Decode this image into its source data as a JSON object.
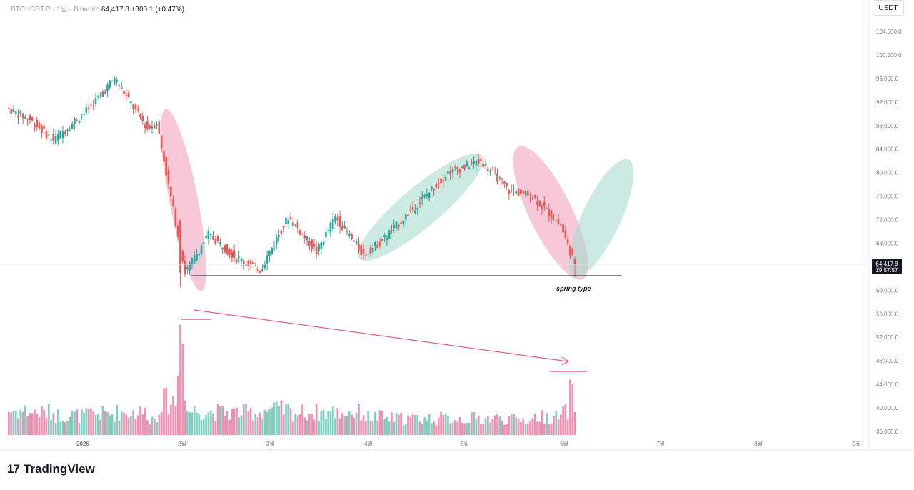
{
  "header": {
    "symbol": "BTCUSDT.P",
    "timeframe": "1일",
    "exchange": "Binance",
    "last_price": "64,417.8",
    "change": "+300.1 (+0.47%)"
  },
  "currency": "USDT",
  "brand": "TradingView",
  "price_label": {
    "price": "64,417.8",
    "countdown": "19:57:57"
  },
  "annotation": "spring type",
  "colors": {
    "up": "#26a69a",
    "down": "#ef5350",
    "up_volume": "#7fcfc0",
    "down_volume": "#f08fb0",
    "ellipse_red": "#f2a5be",
    "ellipse_green": "#a9dccf",
    "arrow": "#e0608c"
  },
  "chart_data": {
    "type": "candlestick",
    "y_axis": {
      "ticks": [
        "104,000.0",
        "100,000.0",
        "96,000.0",
        "92,000.0",
        "88,000.0",
        "84,000.0",
        "80,000.0",
        "76,000.0",
        "72,000.0",
        "68,000.0",
        "64,000.0",
        "60,000.0",
        "56,000.0",
        "52,000.0",
        "48,000.0",
        "44,000.0",
        "40,000.0",
        "36,000.0"
      ],
      "range": [
        36000,
        104000
      ]
    },
    "x_axis": {
      "labels": [
        "2026",
        "2월",
        "3월",
        "4월",
        "5월",
        "6월",
        "7월",
        "8월",
        "9월"
      ]
    },
    "support_level": 62500,
    "last_price": 64417.8,
    "segments": [
      {
        "bars": 10,
        "start": 91000,
        "end": 89000,
        "vol": 3.2
      },
      {
        "bars": 10,
        "start": 89000,
        "end": 85500,
        "vol": 3.0
      },
      {
        "bars": 14,
        "start": 85500,
        "end": 90500,
        "vol": 2.6
      },
      {
        "bars": 12,
        "start": 90500,
        "end": 96000,
        "vol": 2.8
      },
      {
        "bars": 14,
        "start": 96000,
        "end": 87500,
        "vol": 3.0
      },
      {
        "bars": 4,
        "start": 87500,
        "end": 88500,
        "vol": 2.2
      },
      {
        "bars": 12,
        "start": 88500,
        "end": 63000,
        "vol": 4.5
      },
      {
        "bars": 10,
        "start": 63000,
        "end": 69500,
        "vol": 3.2
      },
      {
        "bars": 12,
        "start": 69500,
        "end": 65500,
        "vol": 3.0
      },
      {
        "bars": 10,
        "start": 65500,
        "end": 63500,
        "vol": 3.0
      },
      {
        "bars": 12,
        "start": 63500,
        "end": 72500,
        "vol": 3.3
      },
      {
        "bars": 12,
        "start": 72500,
        "end": 66500,
        "vol": 3.0
      },
      {
        "bars": 8,
        "start": 66500,
        "end": 72500,
        "vol": 3.0
      },
      {
        "bars": 12,
        "start": 72500,
        "end": 66000,
        "vol": 3.0
      },
      {
        "bars": 8,
        "start": 66000,
        "end": 68500,
        "vol": 2.4
      },
      {
        "bars": 28,
        "start": 68500,
        "end": 80000,
        "vol": 2.2
      },
      {
        "bars": 14,
        "start": 80000,
        "end": 82000,
        "vol": 2.2
      },
      {
        "bars": 12,
        "start": 82000,
        "end": 77000,
        "vol": 2.2
      },
      {
        "bars": 10,
        "start": 77000,
        "end": 76000,
        "vol": 2.0
      },
      {
        "bars": 12,
        "start": 76000,
        "end": 71000,
        "vol": 2.4
      },
      {
        "bars": 6,
        "start": 71000,
        "end": 64400,
        "vol": 3.0
      }
    ],
    "volume": {
      "range": [
        0,
        14
      ]
    }
  }
}
